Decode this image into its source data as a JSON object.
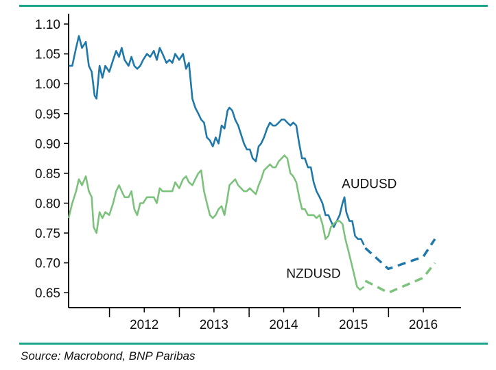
{
  "chart_data": {
    "type": "line",
    "title": "",
    "xlabel": "",
    "ylabel": "",
    "ylim": [
      0.625,
      1.115
    ],
    "xlim": [
      "2011-06-01",
      "2016-12-31"
    ],
    "y_ticks": [
      "1.10",
      "1.05",
      "1.00",
      "0.95",
      "0.90",
      "0.85",
      "0.80",
      "0.75",
      "0.70",
      "0.65"
    ],
    "x_tick_labels": [
      "2012",
      "2013",
      "2014",
      "2015",
      "2016"
    ],
    "grid": false,
    "series": [
      {
        "name": "AUDUSD",
        "color": "#1f78a9",
        "style": "solid",
        "points": [
          [
            "2011-06-01",
            1.03
          ],
          [
            "2011-06-20",
            1.03
          ],
          [
            "2011-07-10",
            1.06
          ],
          [
            "2011-07-25",
            1.08
          ],
          [
            "2011-08-10",
            1.06
          ],
          [
            "2011-08-30",
            1.07
          ],
          [
            "2011-09-15",
            1.03
          ],
          [
            "2011-09-30",
            1.02
          ],
          [
            "2011-10-15",
            0.98
          ],
          [
            "2011-10-25",
            0.975
          ],
          [
            "2011-11-10",
            1.03
          ],
          [
            "2011-11-25",
            1.01
          ],
          [
            "2011-12-10",
            1.03
          ],
          [
            "2011-12-31",
            1.02
          ],
          [
            "2012-01-20",
            1.04
          ],
          [
            "2012-02-05",
            1.055
          ],
          [
            "2012-02-20",
            1.045
          ],
          [
            "2012-03-05",
            1.06
          ],
          [
            "2012-03-20",
            1.04
          ],
          [
            "2012-04-10",
            1.03
          ],
          [
            "2012-04-25",
            1.045
          ],
          [
            "2012-05-10",
            1.03
          ],
          [
            "2012-05-25",
            1.025
          ],
          [
            "2012-06-10",
            1.03
          ],
          [
            "2012-06-25",
            1.04
          ],
          [
            "2012-07-15",
            1.05
          ],
          [
            "2012-08-01",
            1.045
          ],
          [
            "2012-08-20",
            1.055
          ],
          [
            "2012-09-05",
            1.04
          ],
          [
            "2012-09-20",
            1.06
          ],
          [
            "2012-10-05",
            1.05
          ],
          [
            "2012-10-25",
            1.035
          ],
          [
            "2012-11-10",
            1.04
          ],
          [
            "2012-11-25",
            1.035
          ],
          [
            "2012-12-10",
            1.05
          ],
          [
            "2012-12-31",
            1.04
          ],
          [
            "2013-01-20",
            1.05
          ],
          [
            "2013-02-05",
            1.025
          ],
          [
            "2013-02-20",
            1.035
          ],
          [
            "2013-03-10",
            0.975
          ],
          [
            "2013-03-25",
            0.96
          ],
          [
            "2013-04-10",
            0.95
          ],
          [
            "2013-04-25",
            0.94
          ],
          [
            "2013-05-10",
            0.935
          ],
          [
            "2013-05-25",
            0.91
          ],
          [
            "2013-06-10",
            0.905
          ],
          [
            "2013-06-25",
            0.895
          ],
          [
            "2013-07-10",
            0.91
          ],
          [
            "2013-07-25",
            0.9
          ],
          [
            "2013-08-10",
            0.93
          ],
          [
            "2013-08-25",
            0.925
          ],
          [
            "2013-09-10",
            0.955
          ],
          [
            "2013-09-20",
            0.96
          ],
          [
            "2013-10-05",
            0.955
          ],
          [
            "2013-10-20",
            0.94
          ],
          [
            "2013-11-05",
            0.93
          ],
          [
            "2013-11-20",
            0.915
          ],
          [
            "2013-12-05",
            0.9
          ],
          [
            "2013-12-20",
            0.89
          ],
          [
            "2014-01-05",
            0.89
          ],
          [
            "2014-01-20",
            0.875
          ],
          [
            "2014-02-05",
            0.87
          ],
          [
            "2014-02-20",
            0.895
          ],
          [
            "2014-03-05",
            0.9
          ],
          [
            "2014-03-20",
            0.91
          ],
          [
            "2014-04-05",
            0.925
          ],
          [
            "2014-04-20",
            0.935
          ],
          [
            "2014-05-05",
            0.93
          ],
          [
            "2014-05-20",
            0.93
          ],
          [
            "2014-06-05",
            0.935
          ],
          [
            "2014-06-20",
            0.94
          ],
          [
            "2014-07-05",
            0.94
          ],
          [
            "2014-07-20",
            0.935
          ],
          [
            "2014-08-05",
            0.93
          ],
          [
            "2014-08-20",
            0.935
          ],
          [
            "2014-09-05",
            0.93
          ],
          [
            "2014-09-20",
            0.9
          ],
          [
            "2014-10-05",
            0.875
          ],
          [
            "2014-10-20",
            0.875
          ],
          [
            "2014-11-05",
            0.86
          ],
          [
            "2014-11-20",
            0.86
          ],
          [
            "2014-12-05",
            0.835
          ],
          [
            "2014-12-20",
            0.82
          ],
          [
            "2015-01-05",
            0.81
          ],
          [
            "2015-01-20",
            0.8
          ],
          [
            "2015-02-05",
            0.78
          ],
          [
            "2015-02-20",
            0.78
          ],
          [
            "2015-03-05",
            0.77
          ],
          [
            "2015-03-20",
            0.76
          ],
          [
            "2015-04-05",
            0.77
          ],
          [
            "2015-04-20",
            0.78
          ],
          [
            "2015-05-05",
            0.8
          ],
          [
            "2015-05-15",
            0.81
          ],
          [
            "2015-05-25",
            0.785
          ],
          [
            "2015-06-10",
            0.77
          ],
          [
            "2015-06-25",
            0.77
          ],
          [
            "2015-07-10",
            0.745
          ],
          [
            "2015-07-25",
            0.74
          ],
          [
            "2015-08-10",
            0.74
          ],
          [
            "2015-08-25",
            0.73
          ]
        ]
      },
      {
        "name": "AUDUSD",
        "color": "#1f78a9",
        "style": "dashed",
        "points": [
          [
            "2015-09-01",
            0.725
          ],
          [
            "2015-12-31",
            0.69
          ],
          [
            "2016-03-31",
            0.7
          ],
          [
            "2016-06-30",
            0.71
          ],
          [
            "2016-08-31",
            0.74
          ]
        ]
      },
      {
        "name": "NZDUSD",
        "color": "#7cc27c",
        "style": "solid",
        "points": [
          [
            "2011-06-01",
            0.775
          ],
          [
            "2011-06-20",
            0.8
          ],
          [
            "2011-07-10",
            0.82
          ],
          [
            "2011-07-25",
            0.84
          ],
          [
            "2011-08-10",
            0.83
          ],
          [
            "2011-08-30",
            0.845
          ],
          [
            "2011-09-15",
            0.82
          ],
          [
            "2011-09-30",
            0.81
          ],
          [
            "2011-10-10",
            0.76
          ],
          [
            "2011-10-25",
            0.75
          ],
          [
            "2011-11-10",
            0.785
          ],
          [
            "2011-11-25",
            0.775
          ],
          [
            "2011-12-10",
            0.785
          ],
          [
            "2011-12-31",
            0.78
          ],
          [
            "2012-01-20",
            0.8
          ],
          [
            "2012-02-05",
            0.82
          ],
          [
            "2012-02-20",
            0.83
          ],
          [
            "2012-03-05",
            0.82
          ],
          [
            "2012-03-20",
            0.81
          ],
          [
            "2012-04-10",
            0.81
          ],
          [
            "2012-04-25",
            0.82
          ],
          [
            "2012-05-10",
            0.79
          ],
          [
            "2012-05-25",
            0.78
          ],
          [
            "2012-06-10",
            0.8
          ],
          [
            "2012-06-25",
            0.8
          ],
          [
            "2012-07-15",
            0.81
          ],
          [
            "2012-08-01",
            0.81
          ],
          [
            "2012-08-20",
            0.81
          ],
          [
            "2012-09-05",
            0.8
          ],
          [
            "2012-09-20",
            0.825
          ],
          [
            "2012-10-05",
            0.82
          ],
          [
            "2012-10-25",
            0.82
          ],
          [
            "2012-11-10",
            0.82
          ],
          [
            "2012-11-25",
            0.82
          ],
          [
            "2012-12-10",
            0.835
          ],
          [
            "2012-12-31",
            0.825
          ],
          [
            "2013-01-20",
            0.84
          ],
          [
            "2013-02-05",
            0.845
          ],
          [
            "2013-02-20",
            0.835
          ],
          [
            "2013-03-10",
            0.83
          ],
          [
            "2013-03-25",
            0.84
          ],
          [
            "2013-04-10",
            0.85
          ],
          [
            "2013-04-25",
            0.855
          ],
          [
            "2013-05-10",
            0.82
          ],
          [
            "2013-05-25",
            0.8
          ],
          [
            "2013-06-10",
            0.78
          ],
          [
            "2013-06-25",
            0.775
          ],
          [
            "2013-07-10",
            0.78
          ],
          [
            "2013-07-25",
            0.79
          ],
          [
            "2013-08-10",
            0.795
          ],
          [
            "2013-08-25",
            0.78
          ],
          [
            "2013-09-10",
            0.81
          ],
          [
            "2013-09-20",
            0.83
          ],
          [
            "2013-10-05",
            0.835
          ],
          [
            "2013-10-20",
            0.84
          ],
          [
            "2013-11-05",
            0.83
          ],
          [
            "2013-11-20",
            0.825
          ],
          [
            "2013-12-05",
            0.82
          ],
          [
            "2013-12-20",
            0.82
          ],
          [
            "2014-01-05",
            0.825
          ],
          [
            "2014-01-20",
            0.82
          ],
          [
            "2014-02-05",
            0.815
          ],
          [
            "2014-02-20",
            0.83
          ],
          [
            "2014-03-05",
            0.84
          ],
          [
            "2014-03-20",
            0.855
          ],
          [
            "2014-04-05",
            0.86
          ],
          [
            "2014-04-20",
            0.865
          ],
          [
            "2014-05-05",
            0.86
          ],
          [
            "2014-05-20",
            0.86
          ],
          [
            "2014-06-05",
            0.87
          ],
          [
            "2014-06-20",
            0.875
          ],
          [
            "2014-07-05",
            0.88
          ],
          [
            "2014-07-20",
            0.875
          ],
          [
            "2014-08-05",
            0.85
          ],
          [
            "2014-08-20",
            0.845
          ],
          [
            "2014-09-05",
            0.835
          ],
          [
            "2014-09-20",
            0.81
          ],
          [
            "2014-10-05",
            0.79
          ],
          [
            "2014-10-20",
            0.79
          ],
          [
            "2014-11-05",
            0.78
          ],
          [
            "2014-11-20",
            0.78
          ],
          [
            "2014-12-05",
            0.78
          ],
          [
            "2014-12-20",
            0.775
          ],
          [
            "2015-01-05",
            0.78
          ],
          [
            "2015-01-20",
            0.765
          ],
          [
            "2015-02-05",
            0.74
          ],
          [
            "2015-02-20",
            0.745
          ],
          [
            "2015-03-05",
            0.76
          ],
          [
            "2015-03-20",
            0.765
          ],
          [
            "2015-04-05",
            0.77
          ],
          [
            "2015-04-20",
            0.77
          ],
          [
            "2015-05-05",
            0.765
          ],
          [
            "2015-05-20",
            0.74
          ],
          [
            "2015-06-05",
            0.72
          ],
          [
            "2015-06-20",
            0.7
          ],
          [
            "2015-07-05",
            0.68
          ],
          [
            "2015-07-20",
            0.66
          ],
          [
            "2015-08-05",
            0.655
          ],
          [
            "2015-08-25",
            0.66
          ]
        ]
      },
      {
        "name": "NZDUSD",
        "color": "#7cc27c",
        "style": "dashed",
        "points": [
          [
            "2015-09-01",
            0.67
          ],
          [
            "2015-12-31",
            0.65
          ],
          [
            "2016-06-30",
            0.675
          ],
          [
            "2016-08-31",
            0.7
          ]
        ]
      }
    ],
    "annotations": [
      {
        "text": "AUDUSD",
        "x": "2015-05-01",
        "y": 0.825
      },
      {
        "text": "NZDUSD",
        "x": "2014-07-15",
        "y": 0.675
      }
    ]
  },
  "footer": {
    "source": "Source: Macrobond, BNP Paribas"
  }
}
